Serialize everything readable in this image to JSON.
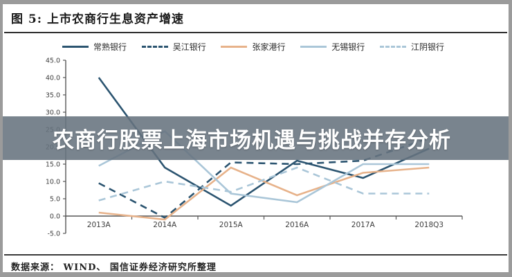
{
  "header": {
    "title": "图 5:  上市农商行生息资产增速"
  },
  "overlay": {
    "text": "农商行股票上海市场机遇与挑战并存分析"
  },
  "footer": {
    "source": "数据来源： WIND、 国信证券经济研究所整理"
  },
  "colors": {
    "dark_navy": "#2b5470",
    "light_blue": "#aac6d8",
    "orange": "#e7b28a",
    "banner_bg": "#67737e",
    "axis": "#555555",
    "frame_gray": "#9b9b9b"
  },
  "chart_data": {
    "type": "line",
    "title": "上市农商行生息资产增速",
    "categories": [
      "2013A",
      "2014A",
      "2015A",
      "2016A",
      "2017A",
      "2018Q3"
    ],
    "series": [
      {
        "name": "常熟银行",
        "color": "#2b5470",
        "dash": false,
        "values": [
          40,
          14,
          3,
          16,
          11,
          19.5
        ]
      },
      {
        "name": "吴江银行",
        "color": "#2b5470",
        "dash": true,
        "values": [
          9.5,
          -0.5,
          15.5,
          15,
          16,
          22.5
        ]
      },
      {
        "name": "张家港行",
        "color": "#e7b28a",
        "dash": false,
        "values": [
          1,
          -1,
          14,
          6,
          12.5,
          14
        ]
      },
      {
        "name": "无锡银行",
        "color": "#aac6d8",
        "dash": false,
        "values": [
          14.5,
          24.5,
          6.5,
          4,
          15,
          15
        ]
      },
      {
        "name": "江阴银行",
        "color": "#aac6d8",
        "dash": true,
        "values": [
          4.5,
          10,
          7,
          14,
          6.5,
          6.5
        ]
      }
    ],
    "ylim": [
      -5,
      45
    ],
    "y_tick_step": 5,
    "y_ticks": [
      "45.0",
      "40.0",
      "35.0",
      "30.0",
      "25.0",
      "20.0",
      "15.0",
      "10.0",
      "5.0",
      "0.0",
      "-5.0"
    ],
    "xlabel": "",
    "ylabel": "",
    "grid": false,
    "legend_position": "top"
  }
}
